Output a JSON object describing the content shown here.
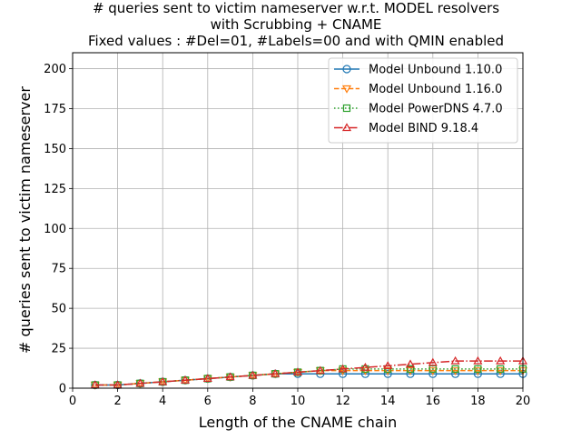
{
  "chart_data": {
    "type": "line",
    "title_lines": [
      "# queries sent to victim nameserver w.r.t. MODEL resolvers",
      "with Scrubbing + CNAME",
      "Fixed values : #Del=01, #Labels=00 and with QMIN enabled"
    ],
    "xlabel": "Length of the CNAME chain",
    "ylabel": "# queries sent to victim nameserver",
    "xlim": [
      0,
      20
    ],
    "ylim": [
      0,
      210
    ],
    "xticks": [
      0,
      2,
      4,
      6,
      8,
      10,
      12,
      14,
      16,
      18,
      20
    ],
    "yticks": [
      0,
      25,
      50,
      75,
      100,
      125,
      150,
      175,
      200
    ],
    "grid": true,
    "legend_position": "top-right",
    "x": [
      1,
      2,
      3,
      4,
      5,
      6,
      7,
      8,
      9,
      10,
      11,
      12,
      13,
      14,
      15,
      16,
      17,
      18,
      19,
      20
    ],
    "series": [
      {
        "name": "Model Unbound 1.10.0",
        "color": "#1f77b4",
        "line_style": "solid",
        "marker": "circle",
        "values": [
          2,
          2,
          3,
          4,
          5,
          6,
          7,
          8,
          9,
          9,
          9,
          9,
          9,
          9,
          9,
          9,
          9,
          9,
          9,
          9
        ]
      },
      {
        "name": "Model Unbound 1.16.0",
        "color": "#ff7f0e",
        "line_style": "dashed",
        "marker": "triangle-down",
        "values": [
          2,
          2,
          3,
          4,
          5,
          6,
          7,
          8,
          9,
          10,
          11,
          11,
          11,
          11,
          11,
          11,
          11,
          11,
          11,
          11
        ]
      },
      {
        "name": "Model PowerDNS 4.7.0",
        "color": "#2ca02c",
        "line_style": "dotted",
        "marker": "square",
        "values": [
          2,
          2,
          3,
          4,
          5,
          6,
          7,
          8,
          9,
          10,
          11,
          12,
          12,
          12,
          12,
          12,
          12,
          12,
          12,
          12
        ]
      },
      {
        "name": "Model BIND 9.18.4",
        "color": "#d62728",
        "line_style": "dashdot",
        "marker": "triangle-up",
        "values": [
          2,
          2,
          3,
          4,
          5,
          6,
          7,
          8,
          9,
          10,
          11,
          12,
          13,
          14,
          15,
          16,
          17,
          17,
          17,
          17
        ]
      }
    ]
  }
}
